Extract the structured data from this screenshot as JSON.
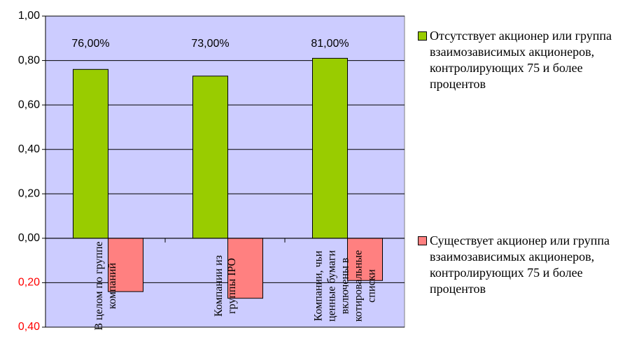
{
  "chart_data": {
    "type": "bar",
    "categories": [
      "В целом по группе компаний",
      "Компании из группы IPO",
      "Компании, чьи ценные бумаги включены в котировальные списки"
    ],
    "series": [
      {
        "name": "Отсутствует акционер или группа взаимозависимых акционеров, контролирующих 75 и более процентов",
        "color": "#99cc00",
        "values": [
          0.76,
          0.73,
          0.81
        ],
        "value_labels": [
          "76,00%",
          "73,00%",
          "81,00%"
        ]
      },
      {
        "name": "Существует акционер или группа взаимозависимых акционеров, контролирующих 75 и более процентов",
        "color": "#ff8080",
        "values": [
          -0.24,
          -0.27,
          -0.19
        ]
      }
    ],
    "ylim": [
      -0.4,
      1.0
    ],
    "yticks": [
      {
        "value": -0.4,
        "label": "0,40",
        "color": "#ff0000"
      },
      {
        "value": -0.2,
        "label": "0,20",
        "color": "#ff0000"
      },
      {
        "value": 0,
        "label": "0,00"
      },
      {
        "value": 0.2,
        "label": "0,20"
      },
      {
        "value": 0.4,
        "label": "0,40"
      },
      {
        "value": 0.6,
        "label": "0,60"
      },
      {
        "value": 0.8,
        "label": "0,80"
      },
      {
        "value": 1.0,
        "label": "1,00"
      }
    ],
    "grid": true,
    "plot_background": "#ccccff",
    "legend": "right"
  }
}
